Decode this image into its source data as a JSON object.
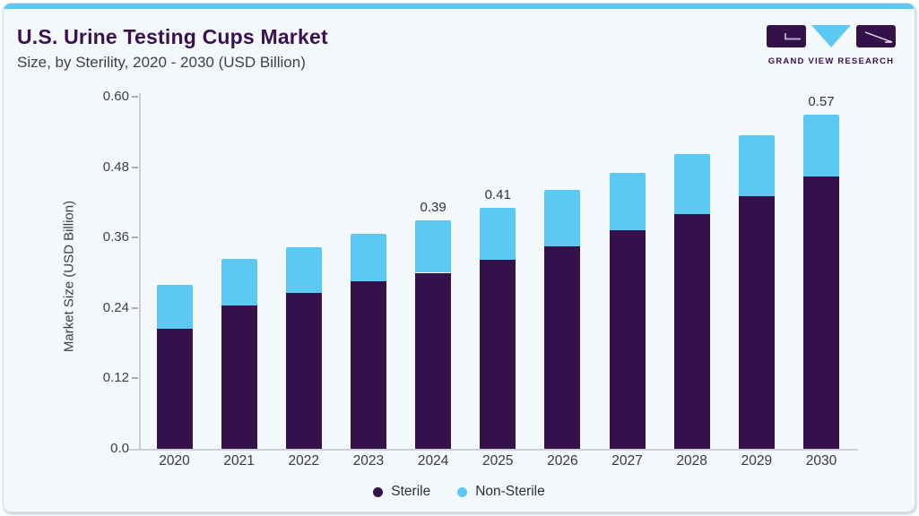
{
  "header": {
    "title": "U.S. Urine Testing Cups Market",
    "subtitle": "Size, by Sterility, 2020 - 2030 (USD Billion)"
  },
  "logo": {
    "text": "GRAND VIEW RESEARCH"
  },
  "colors": {
    "accent_strip": "#5ec9f0",
    "card_bg": "#f3f8fb",
    "title": "#3b1053",
    "sterile": "#35114c",
    "non_sterile": "#5bc9f2",
    "axis_line": "#c8ced6"
  },
  "chart_data": {
    "type": "bar",
    "stacked": true,
    "title": "U.S. Urine Testing Cups Market Size, by Sterility, 2020 - 2030 (USD Billion)",
    "xlabel": "",
    "ylabel": "Market Size (USD Billion)",
    "ylim": [
      0,
      0.6
    ],
    "grid": false,
    "legend_position": "bottom",
    "ytick_values": [
      0,
      0.12,
      0.24,
      0.36,
      0.48,
      0.6
    ],
    "ytick_labels": [
      "0.0",
      "0.12",
      "0.24",
      "0.36",
      "0.48",
      "0.60"
    ],
    "categories": [
      "2020",
      "2021",
      "2022",
      "2023",
      "2024",
      "2025",
      "2026",
      "2027",
      "2028",
      "2029",
      "2030"
    ],
    "series": [
      {
        "name": "Sterile",
        "color": "#35114c",
        "values": [
          0.205,
          0.245,
          0.265,
          0.285,
          0.3,
          0.322,
          0.345,
          0.372,
          0.4,
          0.43,
          0.464
        ]
      },
      {
        "name": "Non-Sterile",
        "color": "#5bc9f2",
        "values": [
          0.075,
          0.078,
          0.078,
          0.082,
          0.09,
          0.088,
          0.096,
          0.098,
          0.102,
          0.105,
          0.106
        ]
      }
    ],
    "totals": [
      0.28,
      0.32,
      0.34,
      0.37,
      0.39,
      0.41,
      0.44,
      0.47,
      0.5,
      0.54,
      0.57
    ],
    "total_labels": [
      "",
      "",
      "",
      "",
      "0.39",
      "0.41",
      "",
      "",
      "",
      "",
      "0.57"
    ]
  },
  "legend": {
    "items": [
      {
        "label": "Sterile",
        "color": "#35114c"
      },
      {
        "label": "Non-Sterile",
        "color": "#5bc9f2"
      }
    ]
  }
}
